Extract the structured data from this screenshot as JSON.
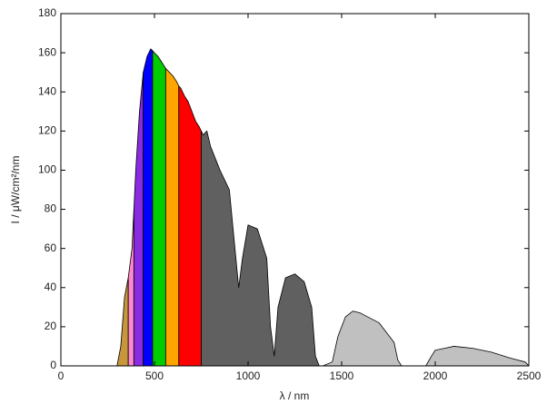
{
  "chart_data": {
    "type": "area",
    "xlabel": "λ / nm",
    "ylabel": "I / μW/cm²/nm",
    "xlim": [
      0,
      2500
    ],
    "ylim": [
      0,
      180
    ],
    "xticks": [
      0,
      500,
      1000,
      1500,
      2000,
      2500
    ],
    "yticks": [
      0,
      20,
      40,
      60,
      80,
      100,
      120,
      140,
      160,
      180
    ],
    "series": [
      {
        "color": "#c8963c",
        "x": [
          300,
          320,
          340,
          360
        ],
        "values": [
          0,
          10,
          35,
          45
        ]
      },
      {
        "color": "#ff88cc",
        "x": [
          360,
          380,
          390
        ],
        "values": [
          45,
          60,
          80
        ]
      },
      {
        "color": "#8a2be2",
        "x": [
          390,
          400,
          420,
          440
        ],
        "values": [
          80,
          100,
          130,
          150
        ]
      },
      {
        "color": "#0000ff",
        "x": [
          440,
          460,
          480,
          490
        ],
        "values": [
          150,
          158,
          162,
          161
        ]
      },
      {
        "color": "#00cc00",
        "x": [
          490,
          500,
          520,
          540,
          560
        ],
        "values": [
          161,
          160,
          158,
          155,
          152
        ]
      },
      {
        "color": "#ffa500",
        "x": [
          560,
          580,
          600,
          620,
          630
        ],
        "values": [
          152,
          150,
          148,
          145,
          143
        ]
      },
      {
        "color": "#ff0000",
        "x": [
          630,
          640,
          660,
          680,
          700,
          720,
          740,
          750
        ],
        "values": [
          143,
          142,
          138,
          135,
          130,
          125,
          122,
          120
        ]
      },
      {
        "color": "#606060",
        "x": [
          750,
          760,
          780,
          800,
          850,
          900,
          930,
          950,
          970,
          1000,
          1050,
          1100,
          1120,
          1140,
          1160,
          1200,
          1250,
          1300,
          1340,
          1360,
          1380
        ],
        "values": [
          120,
          118,
          120,
          112,
          100,
          90,
          60,
          40,
          55,
          72,
          70,
          55,
          20,
          5,
          30,
          45,
          47,
          43,
          30,
          5,
          0
        ]
      },
      {
        "color": "#c0c0c0",
        "x": [
          1380,
          1400,
          1450,
          1480,
          1520,
          1560,
          1600,
          1700,
          1780,
          1800,
          1820,
          1950,
          1980,
          2000,
          2050,
          2100,
          2200,
          2300,
          2400,
          2480,
          2500
        ],
        "values": [
          0,
          0,
          2,
          15,
          25,
          28,
          27,
          22,
          12,
          3,
          0,
          0,
          5,
          8,
          9,
          10,
          9,
          7,
          4,
          2,
          0
        ]
      }
    ]
  }
}
